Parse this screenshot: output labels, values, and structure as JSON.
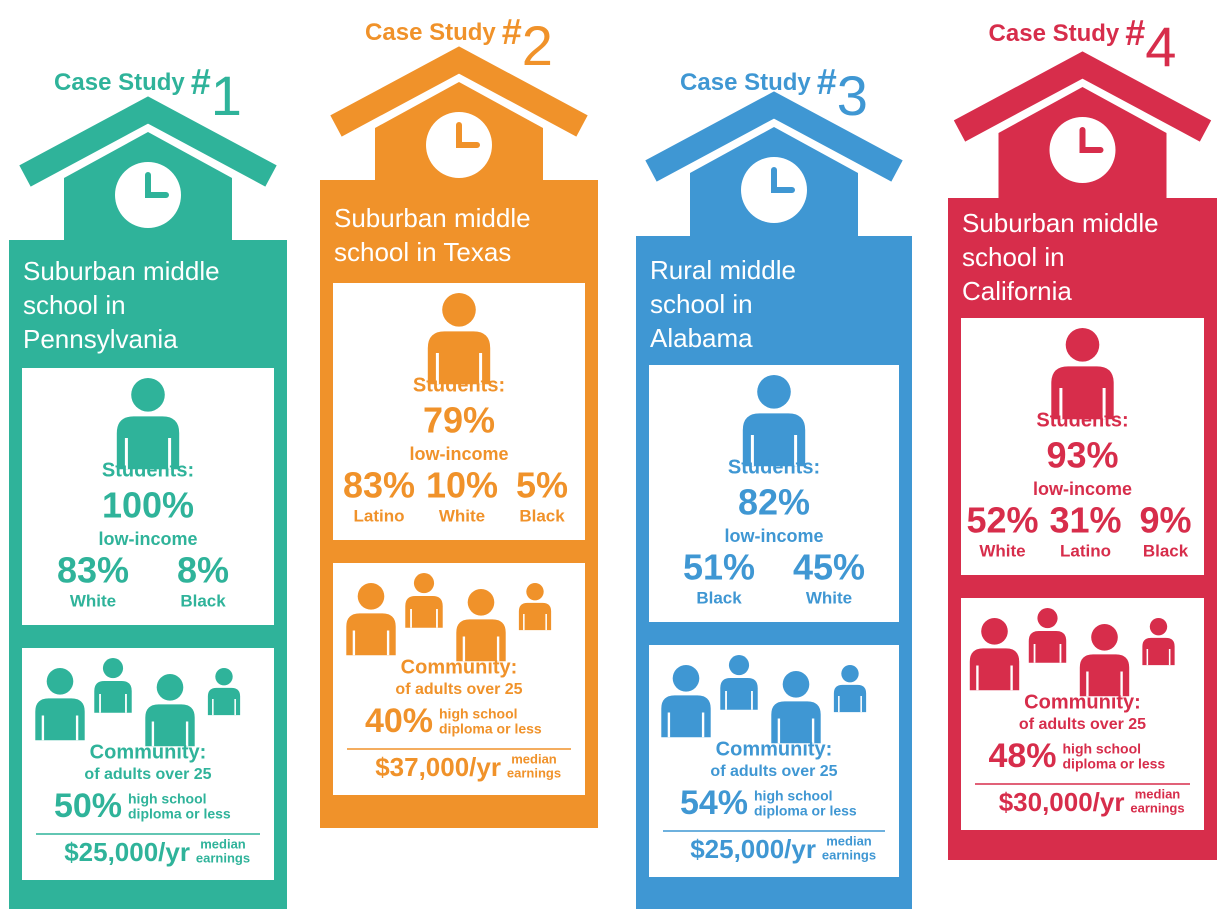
{
  "cases": [
    {
      "color": "#2fb39a",
      "heading": "Case Study",
      "hash": "#",
      "number": "1",
      "school": [
        "Suburban middle",
        "school in",
        "Pennsylvania"
      ],
      "students": {
        "label": "Students:",
        "pct": "100%",
        "sub": "low-income",
        "groups": [
          {
            "pct": "83%",
            "name": "White"
          },
          {
            "pct": "8%",
            "name": "Black"
          }
        ]
      },
      "community": {
        "label": "Community:",
        "sub": "of adults over 25",
        "pct": "50%",
        "pct_label": [
          "high school",
          "diploma or less"
        ],
        "earnings": "$25,000/yr",
        "earnings_label": [
          "median",
          "earnings"
        ]
      }
    },
    {
      "color": "#f0922a",
      "heading": "Case Study",
      "hash": "#",
      "number": "2",
      "school": [
        "Suburban middle",
        "school in Texas"
      ],
      "students": {
        "label": "Students:",
        "pct": "79%",
        "sub": "low-income",
        "groups": [
          {
            "pct": "83%",
            "name": "Latino"
          },
          {
            "pct": "10%",
            "name": "White"
          },
          {
            "pct": "5%",
            "name": "Black"
          }
        ]
      },
      "community": {
        "label": "Community:",
        "sub": "of adults over 25",
        "pct": "40%",
        "pct_label": [
          "high school",
          "diploma or less"
        ],
        "earnings": "$37,000/yr",
        "earnings_label": [
          "median",
          "earnings"
        ]
      }
    },
    {
      "color": "#3f97d3",
      "heading": "Case Study",
      "hash": "#",
      "number": "3",
      "school": [
        "Rural middle",
        "school in",
        "Alabama"
      ],
      "students": {
        "label": "Students:",
        "pct": "82%",
        "sub": "low-income",
        "groups": [
          {
            "pct": "51%",
            "name": "Black"
          },
          {
            "pct": "45%",
            "name": "White"
          }
        ]
      },
      "community": {
        "label": "Community:",
        "sub": "of adults over 25",
        "pct": "54%",
        "pct_label": [
          "high school",
          "diploma or less"
        ],
        "earnings": "$25,000/yr",
        "earnings_label": [
          "median",
          "earnings"
        ]
      }
    },
    {
      "color": "#d72d4b",
      "heading": "Case Study",
      "hash": "#",
      "number": "4",
      "school": [
        "Suburban middle",
        "school in",
        "California"
      ],
      "students": {
        "label": "Students:",
        "pct": "93%",
        "sub": "low-income",
        "groups": [
          {
            "pct": "52%",
            "name": "White"
          },
          {
            "pct": "31%",
            "name": "Latino"
          },
          {
            "pct": "9%",
            "name": "Black"
          }
        ]
      },
      "community": {
        "label": "Community:",
        "sub": "of adults over 25",
        "pct": "48%",
        "pct_label": [
          "high school",
          "diploma or less"
        ],
        "earnings": "$30,000/yr",
        "earnings_label": [
          "median",
          "earnings"
        ]
      }
    }
  ]
}
